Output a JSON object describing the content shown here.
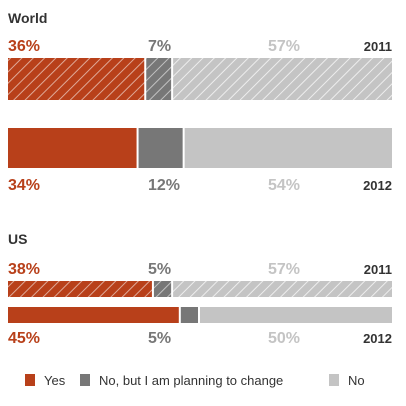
{
  "colors": {
    "yes": "#b8401a",
    "planning": "#777777",
    "no": "#c4c4c4",
    "text": "#333333"
  },
  "chart_data": {
    "type": "bar",
    "orientation": "horizontal-stacked-100",
    "categories": [
      "Yes",
      "No, but I am planning to change",
      "No"
    ],
    "groups": [
      {
        "title": "World",
        "bars": [
          {
            "year": "2011",
            "values": [
              36,
              7,
              57
            ],
            "labels": [
              "36%",
              "7%",
              "57%"
            ],
            "hatched": true
          },
          {
            "year": "2012",
            "values": [
              34,
              12,
              54
            ],
            "labels": [
              "34%",
              "12%",
              "54%"
            ],
            "hatched": false
          }
        ]
      },
      {
        "title": "US",
        "bars": [
          {
            "year": "2011",
            "values": [
              38,
              5,
              57
            ],
            "labels": [
              "38%",
              "5%",
              "57%"
            ],
            "hatched": true
          },
          {
            "year": "2012",
            "values": [
              45,
              5,
              50
            ],
            "labels": [
              "45%",
              "5%",
              "50%"
            ],
            "hatched": false
          }
        ]
      }
    ],
    "legend": [
      {
        "label": "Yes",
        "series": "yes"
      },
      {
        "label": "No, but I am planning to change",
        "series": "planning"
      },
      {
        "label": "No",
        "series": "no"
      }
    ],
    "legend_position": "bottom"
  }
}
